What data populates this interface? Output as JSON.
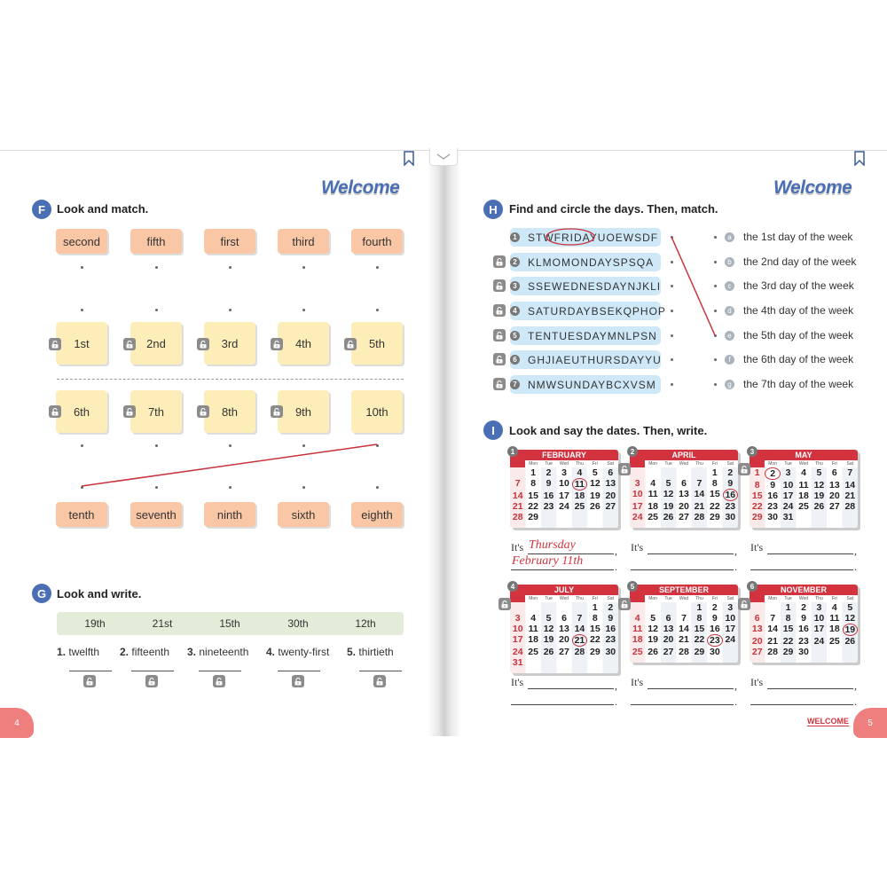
{
  "left_page": {
    "welcome": "Welcome",
    "page_number": "4",
    "section_f": {
      "letter": "F",
      "title": "Look and match.",
      "top_words": [
        "second",
        "fifth",
        "first",
        "third",
        "fourth"
      ],
      "row1_ordinals": [
        "1st",
        "2nd",
        "3rd",
        "4th",
        "5th"
      ],
      "row2_ordinals": [
        "6th",
        "7th",
        "8th",
        "9th",
        "10th"
      ],
      "bottom_words": [
        "tenth",
        "seventh",
        "ninth",
        "sixth",
        "eighth"
      ],
      "example_match": {
        "from": "10th",
        "to": "tenth"
      }
    },
    "section_g": {
      "letter": "G",
      "title": "Look and write.",
      "word_bank": [
        "19th",
        "21st",
        "15th",
        "30th",
        "12th"
      ],
      "items": [
        {
          "n": "1.",
          "word": "twelfth"
        },
        {
          "n": "2.",
          "word": "fifteenth"
        },
        {
          "n": "3.",
          "word": "nineteenth"
        },
        {
          "n": "4.",
          "word": "twenty-first"
        },
        {
          "n": "5.",
          "word": "thirtieth"
        }
      ]
    }
  },
  "right_page": {
    "welcome": "Welcome",
    "page_number": "5",
    "footer_label": "WELCOME",
    "section_h": {
      "letter": "H",
      "title": "Find and circle the days. Then, match.",
      "puzzles": [
        {
          "n": "1",
          "text": "STWFRIDAYUOEWSDF",
          "circled": "FRIDAY"
        },
        {
          "n": "2",
          "text": "KLMOMONDAYSPSQA"
        },
        {
          "n": "3",
          "text": "SSEWEDNESDAYNJKLI"
        },
        {
          "n": "4",
          "text": "SATURDAYBSEKQPHOP"
        },
        {
          "n": "5",
          "text": "TENTUESDAYMNLPSN"
        },
        {
          "n": "6",
          "text": "GHJIAEUTHURSDAYYU"
        },
        {
          "n": "7",
          "text": "NMWSUNDAYBCXVSM"
        }
      ],
      "answers": [
        {
          "letter": "a",
          "text": "the 1st day of the week"
        },
        {
          "letter": "b",
          "text": "the 2nd day of the week"
        },
        {
          "letter": "c",
          "text": "the 3rd day of the week"
        },
        {
          "letter": "d",
          "text": "the 4th day of the week"
        },
        {
          "letter": "e",
          "text": "the 5th day of the week"
        },
        {
          "letter": "f",
          "text": "the 6th day of the week"
        },
        {
          "letter": "g",
          "text": "the 7th day of the week"
        }
      ],
      "example_match": {
        "from": "1",
        "to": "e"
      }
    },
    "section_i": {
      "letter": "I",
      "title": "Look and say the dates. Then, write.",
      "weekday_headers": [
        "Sun",
        "Mon",
        "Tue",
        "Wed",
        "Thu",
        "Fri",
        "Sat"
      ],
      "its_label": "It's",
      "calendars": [
        {
          "n": "1",
          "month": "FEBRUARY",
          "first_weekday": "Mon",
          "days": 29,
          "circled": 11,
          "answer_line1": "Thursday",
          "answer_line2": "February 11th"
        },
        {
          "n": "2",
          "month": "APRIL",
          "first_weekday": "Fri",
          "days": 30,
          "circled": 16
        },
        {
          "n": "3",
          "month": "MAY",
          "first_weekday": "Sun",
          "days": 31,
          "circled": 2
        },
        {
          "n": "4",
          "month": "JULY",
          "first_weekday": "Fri",
          "days": 31,
          "circled": 21
        },
        {
          "n": "5",
          "month": "SEPTEMBER",
          "first_weekday": "Thu",
          "days": 30,
          "circled": 23
        },
        {
          "n": "6",
          "month": "NOVEMBER",
          "first_weekday": "Tue",
          "days": 30,
          "circled": 19
        }
      ]
    }
  },
  "colors": {
    "accent_blue": "#4a6fb5",
    "red": "#d2333f",
    "orange_box": "#f9c7a6",
    "yellow_box": "#fdeeb9",
    "blue_pill": "#cfe8f7",
    "green_bar": "#e3ecd8",
    "lock_gray": "#8b8b8b"
  }
}
